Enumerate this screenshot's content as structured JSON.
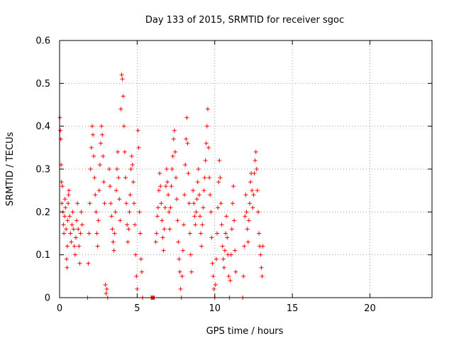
{
  "chart_data": {
    "type": "scatter",
    "title": "Day 133 of 2015, SRMTID for receiver sgoc",
    "xlabel": "GPS time / hours",
    "ylabel": "SRMTID / TECUs",
    "xlim": [
      0,
      24
    ],
    "ylim": [
      0,
      0.6
    ],
    "x_ticks": [
      0,
      5,
      10,
      15,
      20
    ],
    "y_ticks": [
      0,
      0.1,
      0.2,
      0.3,
      0.4,
      0.5,
      0.6
    ],
    "x_tick_labels": [
      "0",
      "5",
      "10",
      "15",
      "20"
    ],
    "y_tick_labels": [
      "0",
      "0.1",
      "0.2",
      "0.3",
      "0.4",
      "0.5",
      "0.6"
    ],
    "grid": true,
    "marker": "+",
    "color": "#ff0000",
    "series": [
      {
        "points": [
          [
            0.02,
            0.42
          ],
          [
            0.05,
            0.39
          ],
          [
            0.08,
            0.37
          ],
          [
            0.1,
            0.31
          ],
          [
            0.12,
            0.27
          ],
          [
            0.15,
            0.22
          ],
          [
            0.18,
            0.26
          ],
          [
            0.22,
            0.2
          ],
          [
            0.25,
            0.17
          ],
          [
            0.28,
            0.15
          ],
          [
            0.32,
            0.19
          ],
          [
            0.35,
            0.23
          ],
          [
            0.38,
            0.21
          ],
          [
            0.42,
            0.16
          ],
          [
            0.45,
            0.09
          ],
          [
            0.48,
            0.07
          ],
          [
            0.5,
            0.12
          ],
          [
            0.52,
            0.18
          ],
          [
            0.55,
            0.22
          ],
          [
            0.58,
            0.24
          ],
          [
            0.6,
            0.25
          ],
          [
            0.65,
            0.19
          ],
          [
            0.7,
            0.15
          ],
          [
            0.75,
            0.13
          ],
          [
            0.8,
            0.17
          ],
          [
            0.85,
            0.2
          ],
          [
            0.9,
            0.16
          ],
          [
            0.95,
            0.12
          ],
          [
            1.0,
            0.1
          ],
          [
            1.05,
            0.14
          ],
          [
            1.1,
            0.18
          ],
          [
            1.15,
            0.22
          ],
          [
            1.2,
            0.16
          ],
          [
            1.25,
            0.12
          ],
          [
            1.3,
            0.08
          ],
          [
            1.35,
            0.15
          ],
          [
            1.4,
            0.2
          ],
          [
            1.45,
            0.17
          ],
          [
            1.8,
            0.0
          ],
          [
            1.85,
            0.08
          ],
          [
            1.9,
            0.15
          ],
          [
            1.95,
            0.22
          ],
          [
            2.0,
            0.3
          ],
          [
            2.05,
            0.35
          ],
          [
            2.1,
            0.4
          ],
          [
            2.15,
            0.38
          ],
          [
            2.2,
            0.33
          ],
          [
            2.25,
            0.28
          ],
          [
            2.3,
            0.24
          ],
          [
            2.35,
            0.2
          ],
          [
            2.4,
            0.15
          ],
          [
            2.45,
            0.12
          ],
          [
            2.5,
            0.18
          ],
          [
            2.55,
            0.25
          ],
          [
            2.6,
            0.31
          ],
          [
            2.65,
            0.36
          ],
          [
            2.7,
            0.4
          ],
          [
            2.75,
            0.38
          ],
          [
            2.8,
            0.33
          ],
          [
            2.85,
            0.27
          ],
          [
            2.9,
            0.22
          ],
          [
            2.95,
            0.03
          ],
          [
            3.0,
            0.01
          ],
          [
            3.05,
            0.02
          ],
          [
            3.1,
            0.0
          ],
          [
            3.2,
            0.3
          ],
          [
            3.25,
            0.26
          ],
          [
            3.3,
            0.22
          ],
          [
            3.35,
            0.19
          ],
          [
            3.4,
            0.16
          ],
          [
            3.45,
            0.13
          ],
          [
            3.5,
            0.11
          ],
          [
            3.55,
            0.15
          ],
          [
            3.6,
            0.2
          ],
          [
            3.65,
            0.25
          ],
          [
            3.7,
            0.3
          ],
          [
            3.75,
            0.34
          ],
          [
            3.8,
            0.28
          ],
          [
            3.85,
            0.23
          ],
          [
            3.9,
            0.18
          ],
          [
            3.95,
            0.44
          ],
          [
            4.0,
            0.52
          ],
          [
            4.05,
            0.51
          ],
          [
            4.1,
            0.47
          ],
          [
            4.15,
            0.4
          ],
          [
            4.2,
            0.34
          ],
          [
            4.25,
            0.28
          ],
          [
            4.3,
            0.22
          ],
          [
            4.35,
            0.17
          ],
          [
            4.4,
            0.13
          ],
          [
            4.45,
            0.16
          ],
          [
            4.5,
            0.2
          ],
          [
            4.55,
            0.24
          ],
          [
            4.6,
            0.3
          ],
          [
            4.65,
            0.33
          ],
          [
            4.7,
            0.31
          ],
          [
            4.75,
            0.27
          ],
          [
            4.8,
            0.22
          ],
          [
            4.85,
            0.17
          ],
          [
            4.9,
            0.1
          ],
          [
            4.95,
            0.05
          ],
          [
            5.0,
            0.02
          ],
          [
            5.05,
            0.39
          ],
          [
            5.1,
            0.35
          ],
          [
            5.15,
            0.2
          ],
          [
            5.2,
            0.15
          ],
          [
            5.25,
            0.09
          ],
          [
            5.3,
            0.06
          ],
          [
            5.35,
            0.0
          ],
          [
            5.9,
            0.0
          ],
          [
            5.95,
            0.0
          ],
          [
            6.0,
            0.0
          ],
          [
            6.05,
            0.0
          ],
          [
            6.1,
            0.0
          ],
          [
            6.2,
            0.13
          ],
          [
            6.25,
            0.15
          ],
          [
            6.3,
            0.19
          ],
          [
            6.35,
            0.21
          ],
          [
            6.4,
            0.25
          ],
          [
            6.45,
            0.29
          ],
          [
            6.5,
            0.26
          ],
          [
            6.55,
            0.22
          ],
          [
            6.6,
            0.18
          ],
          [
            6.65,
            0.14
          ],
          [
            6.7,
            0.11
          ],
          [
            6.75,
            0.16
          ],
          [
            6.8,
            0.21
          ],
          [
            6.85,
            0.26
          ],
          [
            6.9,
            0.3
          ],
          [
            6.95,
            0.27
          ],
          [
            7.0,
            0.24
          ],
          [
            7.05,
            0.2
          ],
          [
            7.1,
            0.16
          ],
          [
            7.15,
            0.21
          ],
          [
            7.2,
            0.26
          ],
          [
            7.25,
            0.3
          ],
          [
            7.3,
            0.33
          ],
          [
            7.35,
            0.37
          ],
          [
            7.4,
            0.39
          ],
          [
            7.45,
            0.34
          ],
          [
            7.5,
            0.28
          ],
          [
            7.55,
            0.23
          ],
          [
            7.6,
            0.18
          ],
          [
            7.65,
            0.13
          ],
          [
            7.7,
            0.09
          ],
          [
            7.75,
            0.06
          ],
          [
            7.8,
            0.02
          ],
          [
            7.85,
            0.0
          ],
          [
            7.9,
            0.05
          ],
          [
            7.95,
            0.11
          ],
          [
            8.0,
            0.17
          ],
          [
            8.05,
            0.24
          ],
          [
            8.1,
            0.31
          ],
          [
            8.15,
            0.37
          ],
          [
            8.2,
            0.42
          ],
          [
            8.25,
            0.36
          ],
          [
            8.3,
            0.29
          ],
          [
            8.35,
            0.22
          ],
          [
            8.4,
            0.15
          ],
          [
            8.45,
            0.1
          ],
          [
            8.5,
            0.06
          ],
          [
            8.6,
            0.25
          ],
          [
            8.65,
            0.22
          ],
          [
            8.7,
            0.19
          ],
          [
            8.75,
            0.17
          ],
          [
            8.8,
            0.2
          ],
          [
            8.85,
            0.23
          ],
          [
            8.9,
            0.27
          ],
          [
            8.95,
            0.3
          ],
          [
            9.0,
            0.24
          ],
          [
            9.05,
            0.19
          ],
          [
            9.1,
            0.15
          ],
          [
            9.15,
            0.12
          ],
          [
            9.2,
            0.17
          ],
          [
            9.25,
            0.21
          ],
          [
            9.3,
            0.25
          ],
          [
            9.35,
            0.28
          ],
          [
            9.4,
            0.32
          ],
          [
            9.45,
            0.36
          ],
          [
            9.5,
            0.4
          ],
          [
            9.55,
            0.44
          ],
          [
            9.6,
            0.35
          ],
          [
            9.65,
            0.28
          ],
          [
            9.7,
            0.24
          ],
          [
            9.75,
            0.2
          ],
          [
            9.8,
            0.14
          ],
          [
            9.85,
            0.08
          ],
          [
            9.9,
            0.05
          ],
          [
            9.95,
            0.02
          ],
          [
            10.0,
            0.0
          ],
          [
            10.05,
            0.03
          ],
          [
            10.1,
            0.09
          ],
          [
            10.15,
            0.15
          ],
          [
            10.2,
            0.21
          ],
          [
            10.25,
            0.27
          ],
          [
            10.3,
            0.32
          ],
          [
            10.35,
            0.28
          ],
          [
            10.4,
            0.22
          ],
          [
            10.45,
            0.17
          ],
          [
            10.5,
            0.12
          ],
          [
            10.55,
            0.09
          ],
          [
            10.6,
            0.07
          ],
          [
            10.65,
            0.11
          ],
          [
            10.7,
            0.15
          ],
          [
            10.75,
            0.19
          ],
          [
            10.8,
            0.14
          ],
          [
            10.85,
            0.1
          ],
          [
            10.9,
            0.05
          ],
          [
            10.95,
            0.0
          ],
          [
            11.0,
            0.04
          ],
          [
            11.05,
            0.1
          ],
          [
            11.1,
            0.16
          ],
          [
            11.15,
            0.22
          ],
          [
            11.2,
            0.26
          ],
          [
            11.25,
            0.18
          ],
          [
            11.3,
            0.11
          ],
          [
            11.35,
            0.06
          ],
          [
            11.8,
            0.0
          ],
          [
            11.85,
            0.05
          ],
          [
            11.9,
            0.12
          ],
          [
            11.95,
            0.19
          ],
          [
            12.0,
            0.24
          ],
          [
            12.05,
            0.2
          ],
          [
            12.1,
            0.16
          ],
          [
            12.15,
            0.13
          ],
          [
            12.2,
            0.18
          ],
          [
            12.25,
            0.22
          ],
          [
            12.3,
            0.27
          ],
          [
            12.35,
            0.29
          ],
          [
            12.4,
            0.25
          ],
          [
            12.45,
            0.21
          ],
          [
            12.5,
            0.24
          ],
          [
            12.55,
            0.29
          ],
          [
            12.6,
            0.32
          ],
          [
            12.65,
            0.34
          ],
          [
            12.7,
            0.3
          ],
          [
            12.75,
            0.25
          ],
          [
            12.8,
            0.2
          ],
          [
            12.85,
            0.15
          ],
          [
            12.9,
            0.12
          ],
          [
            12.95,
            0.1
          ],
          [
            13.0,
            0.07
          ],
          [
            13.05,
            0.05
          ],
          [
            13.1,
            0.12
          ]
        ]
      }
    ]
  }
}
